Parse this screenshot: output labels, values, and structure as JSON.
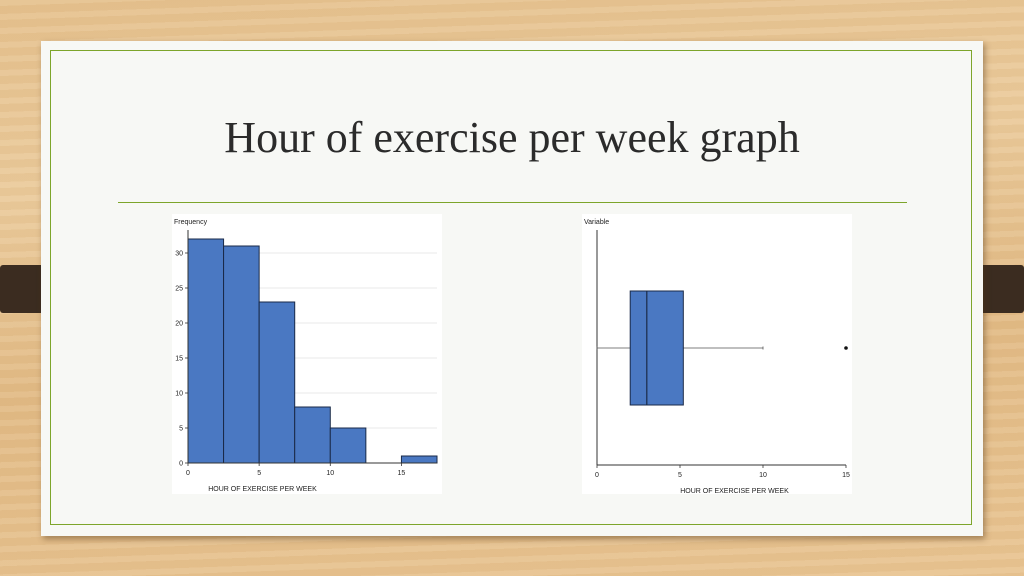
{
  "slide": {
    "title": "Hour of  exercise per week graph"
  },
  "colors": {
    "accent_green": "#7da52b",
    "bar_fill": "#4a78c2",
    "bar_stroke": "#1a2a48",
    "tab": "#3b2c20"
  },
  "chart_data": [
    {
      "type": "bar",
      "subtype": "histogram",
      "ylabel": "Frequency",
      "xlabel": "HOUR OF EXERCISE PER WEEK",
      "bins": [
        {
          "start": 0,
          "end": 2.5,
          "count": 32
        },
        {
          "start": 2.5,
          "end": 5,
          "count": 31
        },
        {
          "start": 5,
          "end": 7.5,
          "count": 23
        },
        {
          "start": 7.5,
          "end": 10,
          "count": 8
        },
        {
          "start": 10,
          "end": 12.5,
          "count": 5
        },
        {
          "start": 15,
          "end": 17.5,
          "count": 1
        }
      ],
      "xlim": [
        0,
        17.5
      ],
      "ylim": [
        0,
        33
      ],
      "xticks": [
        0,
        5,
        10,
        15
      ],
      "yticks": [
        0,
        5,
        10,
        15,
        20,
        25,
        30
      ],
      "grid": true
    },
    {
      "type": "boxplot",
      "ylabel": "Variable",
      "xlabel": "HOUR OF EXERCISE PER WEEK",
      "whisker_low": 0,
      "q1": 2,
      "median": 3,
      "q3": 5.2,
      "whisker_high": 10,
      "outliers": [
        15
      ],
      "xlim": [
        0,
        15
      ],
      "xticks": [
        0,
        5,
        10,
        15
      ],
      "grid": false
    }
  ]
}
